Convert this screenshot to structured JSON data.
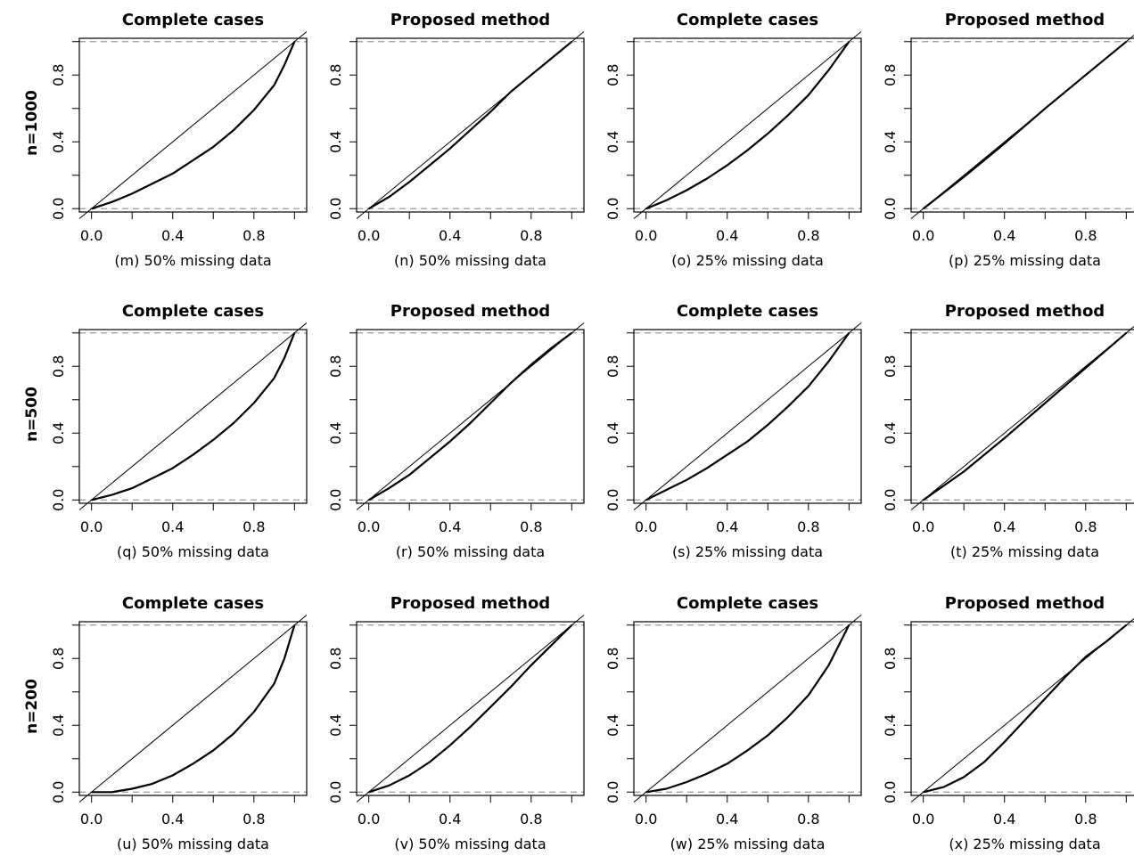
{
  "figure": {
    "row_labels": [
      "n=1000",
      "n=500",
      "n=200"
    ]
  },
  "chart_data": [
    {
      "type": "line",
      "title": "Complete cases",
      "caption": "(m) 50% missing data",
      "row": 0,
      "col": 0,
      "tick_values": [
        0.0,
        0.4,
        0.8
      ],
      "x_tick_labels": [
        "0.0",
        "0.4",
        "0.8"
      ],
      "y_tick_labels": [
        "0.0",
        "0.4",
        "0.8"
      ],
      "xlim": [
        -0.06,
        1.06
      ],
      "ylim": [
        -0.02,
        1.02
      ],
      "reference_lines": [
        0,
        1
      ],
      "series": [
        {
          "x": [
            0.0,
            0.1,
            0.2,
            0.3,
            0.4,
            0.5,
            0.6,
            0.7,
            0.8,
            0.9,
            0.95,
            1.0
          ],
          "y": [
            0.0,
            0.04,
            0.09,
            0.15,
            0.21,
            0.29,
            0.37,
            0.47,
            0.59,
            0.74,
            0.86,
            1.0
          ]
        }
      ]
    },
    {
      "type": "line",
      "title": "Proposed method",
      "caption": "(n) 50% missing data",
      "row": 0,
      "col": 1,
      "tick_values": [
        0.0,
        0.4,
        0.8
      ],
      "x_tick_labels": [
        "0.0",
        "0.4",
        "0.8"
      ],
      "y_tick_labels": [
        "0.0",
        "0.4",
        "0.8"
      ],
      "xlim": [
        -0.06,
        1.06
      ],
      "ylim": [
        -0.02,
        1.02
      ],
      "reference_lines": [
        0,
        1
      ],
      "series": [
        {
          "x": [
            0.0,
            0.1,
            0.2,
            0.3,
            0.4,
            0.5,
            0.6,
            0.7,
            0.8,
            0.9,
            1.0
          ],
          "y": [
            0.0,
            0.07,
            0.16,
            0.26,
            0.36,
            0.47,
            0.58,
            0.7,
            0.8,
            0.9,
            1.0
          ]
        }
      ]
    },
    {
      "type": "line",
      "title": "Complete cases",
      "caption": "(o) 25% missing data",
      "row": 0,
      "col": 2,
      "tick_values": [
        0.0,
        0.4,
        0.8
      ],
      "x_tick_labels": [
        "0.0",
        "0.4",
        "0.8"
      ],
      "y_tick_labels": [
        "0.0",
        "0.4",
        "0.8"
      ],
      "xlim": [
        -0.06,
        1.06
      ],
      "ylim": [
        -0.02,
        1.02
      ],
      "reference_lines": [
        0,
        1
      ],
      "series": [
        {
          "x": [
            0.0,
            0.1,
            0.2,
            0.3,
            0.4,
            0.5,
            0.6,
            0.7,
            0.8,
            0.9,
            1.0
          ],
          "y": [
            0.0,
            0.05,
            0.11,
            0.18,
            0.26,
            0.35,
            0.45,
            0.56,
            0.68,
            0.83,
            1.0
          ]
        }
      ]
    },
    {
      "type": "line",
      "title": "Proposed method",
      "caption": "(p) 25% missing data",
      "row": 0,
      "col": 3,
      "tick_values": [
        0.0,
        0.4,
        0.8
      ],
      "x_tick_labels": [
        "0.0",
        "0.4",
        "0.8"
      ],
      "y_tick_labels": [
        "0.0",
        "0.4",
        "0.8"
      ],
      "xlim": [
        -0.06,
        1.06
      ],
      "ylim": [
        -0.02,
        1.02
      ],
      "reference_lines": [
        0,
        1
      ],
      "series": [
        {
          "x": [
            0.0,
            0.2,
            0.4,
            0.6,
            0.8,
            1.0
          ],
          "y": [
            0.0,
            0.19,
            0.39,
            0.6,
            0.8,
            1.0
          ]
        }
      ]
    },
    {
      "type": "line",
      "title": "Complete cases",
      "caption": "(q) 50% missing data",
      "row": 1,
      "col": 0,
      "tick_values": [
        0.0,
        0.4,
        0.8
      ],
      "x_tick_labels": [
        "0.0",
        "0.4",
        "0.8"
      ],
      "y_tick_labels": [
        "0.0",
        "0.4",
        "0.8"
      ],
      "xlim": [
        -0.06,
        1.06
      ],
      "ylim": [
        -0.02,
        1.02
      ],
      "reference_lines": [
        0,
        1
      ],
      "series": [
        {
          "x": [
            0.0,
            0.1,
            0.2,
            0.3,
            0.4,
            0.5,
            0.6,
            0.7,
            0.8,
            0.9,
            0.95,
            1.0
          ],
          "y": [
            0.0,
            0.03,
            0.07,
            0.13,
            0.19,
            0.27,
            0.36,
            0.46,
            0.58,
            0.73,
            0.85,
            1.0
          ]
        }
      ]
    },
    {
      "type": "line",
      "title": "Proposed method",
      "caption": "(r) 50% missing data",
      "row": 1,
      "col": 1,
      "tick_values": [
        0.0,
        0.4,
        0.8
      ],
      "x_tick_labels": [
        "0.0",
        "0.4",
        "0.8"
      ],
      "y_tick_labels": [
        "0.0",
        "0.4",
        "0.8"
      ],
      "xlim": [
        -0.06,
        1.06
      ],
      "ylim": [
        -0.02,
        1.02
      ],
      "reference_lines": [
        0,
        1
      ],
      "series": [
        {
          "x": [
            0.0,
            0.1,
            0.2,
            0.3,
            0.4,
            0.5,
            0.6,
            0.7,
            0.8,
            0.9,
            1.0
          ],
          "y": [
            0.0,
            0.07,
            0.15,
            0.25,
            0.35,
            0.46,
            0.58,
            0.7,
            0.81,
            0.91,
            1.0
          ]
        }
      ]
    },
    {
      "type": "line",
      "title": "Complete cases",
      "caption": "(s) 25% missing data",
      "row": 1,
      "col": 2,
      "tick_values": [
        0.0,
        0.4,
        0.8
      ],
      "x_tick_labels": [
        "0.0",
        "0.4",
        "0.8"
      ],
      "y_tick_labels": [
        "0.0",
        "0.4",
        "0.8"
      ],
      "xlim": [
        -0.06,
        1.06
      ],
      "ylim": [
        -0.02,
        1.02
      ],
      "reference_lines": [
        0,
        1
      ],
      "series": [
        {
          "x": [
            0.0,
            0.1,
            0.2,
            0.3,
            0.4,
            0.5,
            0.6,
            0.7,
            0.8,
            0.9,
            1.0
          ],
          "y": [
            0.0,
            0.06,
            0.12,
            0.19,
            0.27,
            0.35,
            0.45,
            0.56,
            0.68,
            0.83,
            1.0
          ]
        }
      ]
    },
    {
      "type": "line",
      "title": "Proposed method",
      "caption": "(t) 25% missing data",
      "row": 1,
      "col": 3,
      "tick_values": [
        0.0,
        0.4,
        0.8
      ],
      "x_tick_labels": [
        "0.0",
        "0.4",
        "0.8"
      ],
      "y_tick_labels": [
        "0.0",
        "0.4",
        "0.8"
      ],
      "xlim": [
        -0.06,
        1.06
      ],
      "ylim": [
        -0.02,
        1.02
      ],
      "reference_lines": [
        0,
        1
      ],
      "series": [
        {
          "x": [
            0.0,
            0.2,
            0.4,
            0.6,
            0.8,
            1.0
          ],
          "y": [
            0.0,
            0.17,
            0.37,
            0.58,
            0.79,
            1.0
          ]
        }
      ]
    },
    {
      "type": "line",
      "title": "Complete cases",
      "caption": "(u) 50% missing data",
      "row": 2,
      "col": 0,
      "tick_values": [
        0.0,
        0.4,
        0.8
      ],
      "x_tick_labels": [
        "0.0",
        "0.4",
        "0.8"
      ],
      "y_tick_labels": [
        "0.0",
        "0.4",
        "0.8"
      ],
      "xlim": [
        -0.06,
        1.06
      ],
      "ylim": [
        -0.02,
        1.02
      ],
      "reference_lines": [
        0,
        1
      ],
      "series": [
        {
          "x": [
            0.0,
            0.1,
            0.2,
            0.3,
            0.4,
            0.5,
            0.6,
            0.7,
            0.8,
            0.9,
            0.95,
            1.0
          ],
          "y": [
            0.0,
            0.0,
            0.02,
            0.05,
            0.1,
            0.17,
            0.25,
            0.35,
            0.48,
            0.65,
            0.8,
            1.0
          ]
        }
      ]
    },
    {
      "type": "line",
      "title": "Proposed method",
      "caption": "(v) 50% missing data",
      "row": 2,
      "col": 1,
      "tick_values": [
        0.0,
        0.4,
        0.8
      ],
      "x_tick_labels": [
        "0.0",
        "0.4",
        "0.8"
      ],
      "y_tick_labels": [
        "0.0",
        "0.4",
        "0.8"
      ],
      "xlim": [
        -0.06,
        1.06
      ],
      "ylim": [
        -0.02,
        1.02
      ],
      "reference_lines": [
        0,
        1
      ],
      "series": [
        {
          "x": [
            0.0,
            0.1,
            0.2,
            0.3,
            0.4,
            0.5,
            0.6,
            0.7,
            0.8,
            0.9,
            1.0
          ],
          "y": [
            0.0,
            0.04,
            0.1,
            0.18,
            0.28,
            0.39,
            0.51,
            0.63,
            0.76,
            0.88,
            1.0
          ]
        }
      ]
    },
    {
      "type": "line",
      "title": "Complete cases",
      "caption": "(w) 25% missing data",
      "row": 2,
      "col": 2,
      "tick_values": [
        0.0,
        0.4,
        0.8
      ],
      "x_tick_labels": [
        "0.0",
        "0.4",
        "0.8"
      ],
      "y_tick_labels": [
        "0.0",
        "0.4",
        "0.8"
      ],
      "xlim": [
        -0.06,
        1.06
      ],
      "ylim": [
        -0.02,
        1.02
      ],
      "reference_lines": [
        0,
        1
      ],
      "series": [
        {
          "x": [
            0.0,
            0.1,
            0.2,
            0.3,
            0.4,
            0.5,
            0.6,
            0.7,
            0.8,
            0.9,
            1.0
          ],
          "y": [
            0.0,
            0.02,
            0.06,
            0.11,
            0.17,
            0.25,
            0.34,
            0.45,
            0.58,
            0.76,
            1.0
          ]
        }
      ]
    },
    {
      "type": "line",
      "title": "Proposed method",
      "caption": "(x) 25% missing data",
      "row": 2,
      "col": 3,
      "tick_values": [
        0.0,
        0.4,
        0.8
      ],
      "x_tick_labels": [
        "0.0",
        "0.4",
        "0.8"
      ],
      "y_tick_labels": [
        "0.0",
        "0.4",
        "0.8"
      ],
      "xlim": [
        -0.06,
        1.06
      ],
      "ylim": [
        -0.02,
        1.02
      ],
      "reference_lines": [
        0,
        1
      ],
      "series": [
        {
          "x": [
            0.0,
            0.1,
            0.2,
            0.3,
            0.4,
            0.5,
            0.6,
            0.7,
            0.8,
            0.9,
            1.0
          ],
          "y": [
            0.0,
            0.03,
            0.09,
            0.18,
            0.3,
            0.43,
            0.56,
            0.69,
            0.81,
            0.9,
            1.0
          ]
        }
      ]
    }
  ]
}
